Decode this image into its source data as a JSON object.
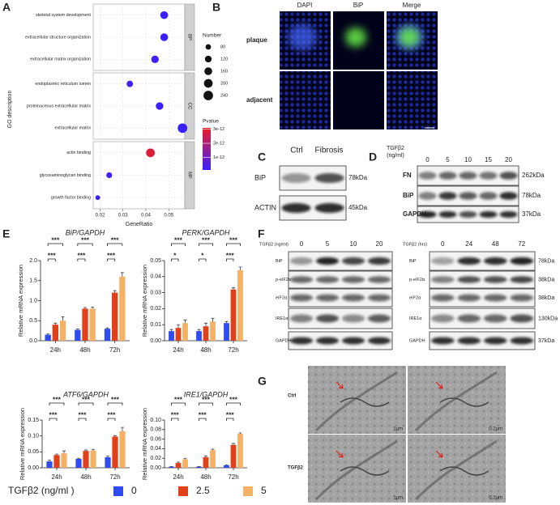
{
  "panel_labels": [
    "A",
    "B",
    "C",
    "D",
    "E",
    "F",
    "G"
  ],
  "chart_data": [
    {
      "type": "dot",
      "xlabel": "GeneRatio",
      "ylabel": "GO description",
      "facets": [
        {
          "name": "BP",
          "categories": [
            "skeletal system development",
            "extracellular structure organization",
            "extracellular matrix organization"
          ],
          "x": [
            0.048,
            0.048,
            0.044
          ],
          "sizes": [
            160,
            160,
            150
          ],
          "pvalues": [
            1e-13,
            1e-13,
            1.5e-13
          ]
        },
        {
          "name": "CC",
          "categories": [
            "endoplasmic reticulum lumen",
            "proteinaceous extracellular matrix",
            "extracellular matrix"
          ],
          "x": [
            0.033,
            0.046,
            0.056
          ],
          "sizes": [
            110,
            150,
            240
          ],
          "pvalues": [
            3e-13,
            1e-13,
            1e-13
          ]
        },
        {
          "name": "MF",
          "categories": [
            "actin binding",
            "glycosaminoglycan binding",
            "growth factor binding"
          ],
          "x": [
            0.042,
            0.024,
            0.019
          ],
          "sizes": [
            200,
            90,
            60
          ],
          "pvalues": [
            2.8e-12,
            2e-13,
            1.5e-13
          ]
        }
      ],
      "xlim": [
        0.017,
        0.057
      ],
      "xticks": [
        0.02,
        0.03,
        0.04,
        0.05
      ],
      "grid": true,
      "size_title": "Number",
      "size_ticks": [
        80,
        120,
        160,
        200,
        240
      ],
      "color_title": "Pvalue",
      "color_lim": [
        1e-13,
        3.1e-12
      ],
      "colors": [
        "#3a20ff",
        "#ee1c25"
      ],
      "color_ticks": [
        {
          "value": 3e-12,
          "label": "3e-12"
        },
        {
          "value": 2e-12,
          "label": "2e-12"
        },
        {
          "value": 1e-12,
          "label": "1e-12"
        }
      ]
    },
    {
      "type": "bar",
      "title": "BiP/GAPDH",
      "ylabel": "Relative mRNA expression",
      "categories": [
        "24h",
        "48h",
        "72h"
      ],
      "series": [
        {
          "name": "0",
          "color": "#2f4cf0",
          "values": [
            0.15,
            0.27,
            0.3
          ],
          "errors": [
            0.02,
            0.02,
            0.02
          ]
        },
        {
          "name": "2.5",
          "color": "#e0401a",
          "values": [
            0.4,
            0.8,
            1.2
          ],
          "errors": [
            0.04,
            0.03,
            0.05
          ]
        },
        {
          "name": "5",
          "color": "#f5b266",
          "values": [
            0.5,
            0.8,
            1.6
          ],
          "errors": [
            0.1,
            0.04,
            0.1
          ]
        }
      ],
      "ylim": [
        0,
        2
      ],
      "yticks": [
        {
          "value": 0,
          "label": "0.0"
        },
        0.5,
        {
          "value": 1,
          "label": "1.0"
        },
        1.5,
        {
          "value": 2,
          "label": "2.0"
        }
      ],
      "significance": [
        [
          "***",
          "***"
        ],
        [
          "***",
          "***"
        ],
        [
          "***",
          "***"
        ]
      ]
    },
    {
      "type": "bar",
      "title": "PERK/GAPDH",
      "ylabel": "Relative mRNA expression",
      "categories": [
        "24h",
        "48h",
        "72h"
      ],
      "series": [
        {
          "name": "0",
          "color": "#2f4cf0",
          "values": [
            0.006,
            0.006,
            0.011
          ],
          "errors": [
            0.001,
            0.001,
            0.001
          ]
        },
        {
          "name": "2.5",
          "color": "#e0401a",
          "values": [
            0.008,
            0.009,
            0.032
          ],
          "errors": [
            0.002,
            0.002,
            0.001
          ]
        },
        {
          "name": "5",
          "color": "#f5b266",
          "values": [
            0.011,
            0.012,
            0.044
          ],
          "errors": [
            0.002,
            0.002,
            0.002
          ]
        }
      ],
      "ylim": [
        0,
        0.05
      ],
      "yticks": [
        {
          "value": 0,
          "label": "0.00"
        },
        0.01,
        0.02,
        0.03,
        0.04,
        0.05
      ],
      "significance": [
        [
          "*",
          "***"
        ],
        [
          "*",
          "***"
        ],
        [
          "***",
          "***"
        ]
      ]
    },
    {
      "type": "bar",
      "title": "ATF6/GAPDH",
      "ylabel": "Relative mRNA expression",
      "categories": [
        "24h",
        "48h",
        "72h"
      ],
      "series": [
        {
          "name": "0",
          "color": "#2f4cf0",
          "values": [
            0.02,
            0.028,
            0.033
          ],
          "errors": [
            0.004,
            0.002,
            0.004
          ]
        },
        {
          "name": "2.5",
          "color": "#e0401a",
          "values": [
            0.04,
            0.053,
            0.098
          ],
          "errors": [
            0.003,
            0.003,
            0.003
          ]
        },
        {
          "name": "5",
          "color": "#f5b266",
          "values": [
            0.046,
            0.054,
            0.115
          ],
          "errors": [
            0.007,
            0.004,
            0.012
          ]
        }
      ],
      "ylim": [
        0,
        0.15
      ],
      "yticks": [
        {
          "value": 0,
          "label": "0.00"
        },
        0.05,
        {
          "value": 0.1,
          "label": "0.10"
        },
        0.15
      ],
      "significance": [
        [
          "***",
          "***"
        ],
        [
          "***",
          "***"
        ],
        [
          "***",
          "***"
        ]
      ]
    },
    {
      "type": "bar",
      "title": "IRE1/GAPDH",
      "ylabel": "Relative mRNA expression",
      "categories": [
        "24h",
        "48h",
        "72h"
      ],
      "series": [
        {
          "name": "0",
          "color": "#2f4cf0",
          "values": [
            0.002,
            0.002,
            0.005
          ],
          "errors": [
            0.0005,
            0.0005,
            0.001
          ]
        },
        {
          "name": "2.5",
          "color": "#e0401a",
          "values": [
            0.01,
            0.022,
            0.048
          ],
          "errors": [
            0.002,
            0.003,
            0.003
          ]
        },
        {
          "name": "5",
          "color": "#f5b266",
          "values": [
            0.018,
            0.037,
            0.071
          ],
          "errors": [
            0.002,
            0.002,
            0.002
          ]
        }
      ],
      "ylim": [
        0,
        0.1
      ],
      "yticks": [
        {
          "value": 0,
          "label": "0.00"
        },
        0.02,
        0.04,
        0.06,
        0.08,
        {
          "value": 0.1,
          "label": "0.10"
        }
      ],
      "significance": [
        [
          "***",
          "***"
        ],
        [
          "***",
          "***"
        ],
        [
          "***",
          "***"
        ]
      ]
    }
  ],
  "legend": {
    "title": "TGFβ2 (ng/ml )"
  },
  "panel_b": {
    "columns": [
      "DAPI",
      "BiP",
      "Merge"
    ],
    "rows": [
      "plaque",
      "adjacent"
    ],
    "scale": "50um"
  },
  "panel_c": {
    "columns": [
      "Ctrl",
      "Fibrosis"
    ],
    "rows": [
      "BiP",
      "ACTIN"
    ],
    "sizes": [
      "78kDa",
      "45kDa"
    ]
  },
  "panel_d": {
    "treatment": [
      "TGFβ2",
      "(ng/ml)"
    ],
    "lanes": [
      "0",
      "5",
      "10",
      "15",
      "20"
    ],
    "rows": [
      "FN",
      "BiP",
      "GAPDH"
    ],
    "sizes": [
      "262kDa",
      "78kDa",
      "37kDa"
    ]
  },
  "panel_f": {
    "blots": [
      {
        "treatment": "TGFβ2 (ng/ml)",
        "lanes": [
          "0",
          "5",
          "10",
          "20"
        ]
      },
      {
        "treatment": "TGFβ2 (hrs)",
        "lanes": [
          "0",
          "24",
          "48",
          "72"
        ]
      }
    ],
    "rows": [
      "BiP",
      "p-eIF2α",
      "eIF2α",
      "IRE1α",
      "GAPDH"
    ],
    "sizes": [
      "78kDa",
      "38kDa",
      "38kDa",
      "130kDa",
      "37kDa"
    ]
  },
  "panel_g": {
    "rows": [
      "Ctrl",
      "TGFβ2"
    ],
    "scales": [
      [
        "1μm",
        "0.2μm"
      ],
      [
        "1μm",
        "0.2μm"
      ]
    ]
  }
}
